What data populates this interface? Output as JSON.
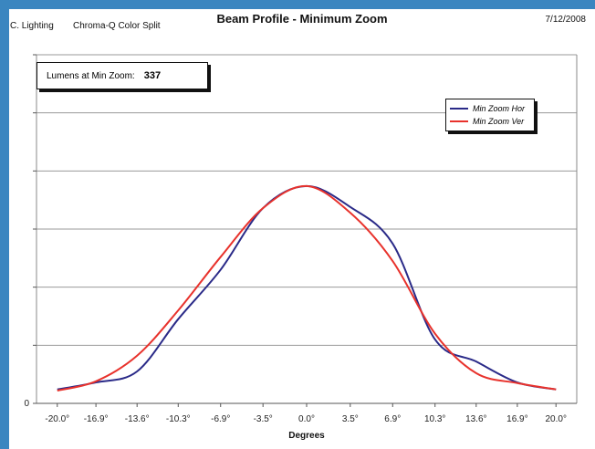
{
  "header": {
    "company": "C. Lighting",
    "product": "Chroma-Q Color Split",
    "title": "Beam Profile - Minimum Zoom",
    "date": "7/12/2008"
  },
  "annotation": {
    "label": "Lumens at Min Zoom:",
    "value": "337"
  },
  "chart_data": {
    "type": "line",
    "xlabel": "Degrees",
    "ylabel": "",
    "categories": [
      "-20.0°",
      "-16.9°",
      "-13.6°",
      "-10.3°",
      "-6.9°",
      "-3.5°",
      "0.0°",
      "3.5°",
      "6.9°",
      "10.3°",
      "13.6°",
      "16.9°",
      "20.0°"
    ],
    "x": [
      -20.0,
      -16.9,
      -13.6,
      -10.3,
      -6.9,
      -3.5,
      0.0,
      3.5,
      6.9,
      10.3,
      13.6,
      16.9,
      20.0
    ],
    "yticks": [
      "",
      "",
      "",
      "",
      "",
      "",
      ""
    ],
    "yfirst": "0",
    "ylim": [
      0,
      6
    ],
    "grid": true,
    "legend_position": "top-right",
    "series": [
      {
        "name": "Min Zoom Hor",
        "color": "#2a2a88",
        "values": [
          0.24,
          0.36,
          0.55,
          1.45,
          2.3,
          3.36,
          3.74,
          3.38,
          2.75,
          1.1,
          0.72,
          0.36,
          0.24
        ]
      },
      {
        "name": "Min Zoom Ver",
        "color": "#e8322c",
        "values": [
          0.22,
          0.38,
          0.82,
          1.6,
          2.52,
          3.36,
          3.74,
          3.28,
          2.45,
          1.2,
          0.52,
          0.35,
          0.24
        ]
      }
    ]
  }
}
